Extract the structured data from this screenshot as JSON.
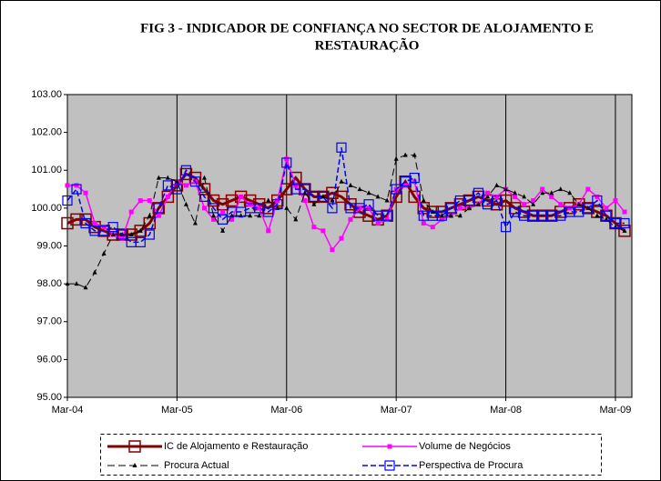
{
  "chart_data": {
    "type": "line",
    "title": [
      "FIG 3 - INDICADOR DE CONFIANÇA NO SECTOR DE ALOJAMENTO E",
      "RESTAURAÇÃO"
    ],
    "categories": [
      "Mar-04",
      null,
      null,
      null,
      null,
      null,
      null,
      null,
      null,
      null,
      null,
      null,
      "Mar-05",
      null,
      null,
      null,
      null,
      null,
      null,
      null,
      null,
      null,
      null,
      null,
      "Mar-06",
      null,
      null,
      null,
      null,
      null,
      null,
      null,
      null,
      null,
      null,
      null,
      "Mar-07",
      null,
      null,
      null,
      null,
      null,
      null,
      null,
      null,
      null,
      null,
      null,
      "Mar-08",
      null,
      null,
      null,
      null,
      null,
      null,
      null,
      null,
      null,
      null,
      null,
      "Mar-09",
      null
    ],
    "ylim": [
      95,
      103
    ],
    "yticks": [
      {
        "value": 95,
        "label": "95.00"
      },
      {
        "value": 96,
        "label": "96.00"
      },
      {
        "value": 97,
        "label": "97.00"
      },
      {
        "value": 98,
        "label": "98.00"
      },
      {
        "value": 99,
        "label": "99.00"
      },
      {
        "value": 100,
        "label": "100.00"
      },
      {
        "value": 101,
        "label": "101.00"
      },
      {
        "value": 102,
        "label": "102.00"
      },
      {
        "value": 103,
        "label": "103.00"
      }
    ],
    "plot_background": "#c0c0c0",
    "year_lines": true,
    "series": [
      {
        "name": "IC de Alojamento e Restauração",
        "color": "#800000",
        "width": 3,
        "dash": "none",
        "marker": "big-square",
        "values": [
          99.6,
          99.7,
          99.7,
          99.5,
          99.4,
          99.3,
          99.3,
          99.3,
          99.4,
          99.6,
          100.0,
          100.3,
          100.6,
          100.9,
          100.8,
          100.5,
          100.2,
          100.1,
          100.2,
          100.3,
          100.2,
          100.1,
          100.0,
          100.2,
          100.5,
          100.8,
          100.5,
          100.3,
          100.3,
          100.4,
          100.3,
          100.1,
          99.9,
          99.8,
          99.7,
          99.8,
          100.3,
          100.7,
          100.3,
          100.0,
          99.9,
          99.9,
          100.0,
          100.1,
          100.2,
          100.3,
          100.2,
          100.1,
          100.2,
          100.0,
          99.9,
          99.8,
          99.8,
          99.8,
          99.9,
          100.0,
          100.1,
          100.0,
          99.9,
          99.8,
          99.6,
          99.4
        ]
      },
      {
        "name": "Volume de Negócios",
        "color": "#ff00ff",
        "width": 1.5,
        "dash": "none",
        "marker": "small-square",
        "values": [
          100.6,
          100.6,
          100.4,
          99.6,
          99.5,
          99.3,
          99.2,
          99.9,
          100.2,
          100.2,
          99.8,
          100.3,
          100.7,
          100.6,
          100.7,
          100.0,
          99.7,
          99.9,
          99.7,
          100.3,
          100.1,
          100.0,
          99.4,
          100.2,
          101.3,
          100.6,
          100.2,
          99.5,
          99.4,
          98.9,
          99.2,
          99.7,
          100.0,
          100.0,
          99.6,
          99.7,
          100.5,
          100.6,
          100.7,
          99.6,
          99.5,
          99.7,
          99.8,
          100.0,
          100.0,
          100.1,
          100.4,
          100.3,
          100.5,
          100.3,
          100.1,
          100.2,
          100.5,
          100.3,
          100.1,
          100.0,
          100.1,
          100.5,
          100.3,
          100.0,
          100.2,
          99.9
        ]
      },
      {
        "name": "Procura Actual",
        "color": "#000000",
        "width": 1,
        "dash": "8,4",
        "marker": "triangle",
        "values": [
          98.0,
          98.0,
          97.9,
          98.3,
          98.8,
          99.3,
          99.3,
          99.3,
          99.4,
          99.8,
          100.8,
          100.8,
          100.7,
          100.1,
          99.6,
          100.8,
          99.8,
          99.4,
          99.8,
          99.8,
          99.8,
          99.8,
          100.2,
          100.0,
          100.0,
          99.7,
          100.4,
          100.1,
          100.3,
          100.2,
          100.7,
          100.6,
          100.5,
          100.4,
          100.3,
          100.2,
          101.3,
          101.4,
          101.4,
          100.2,
          99.9,
          99.8,
          99.8,
          99.8,
          100.0,
          100.1,
          100.3,
          100.6,
          100.5,
          100.4,
          100.3,
          100.1,
          100.4,
          100.4,
          100.5,
          100.4,
          100.1,
          100.0,
          99.8,
          99.7,
          99.5,
          99.4
        ]
      },
      {
        "name": "Perspectiva de Procura",
        "color": "#0000ff",
        "width": 1.5,
        "dash": "6,3",
        "marker": "open-square",
        "values": [
          100.2,
          100.5,
          99.6,
          99.4,
          99.4,
          99.5,
          99.3,
          99.1,
          99.1,
          99.3,
          100.0,
          100.6,
          100.5,
          101.0,
          100.7,
          100.3,
          100.0,
          99.7,
          99.9,
          99.9,
          100.0,
          100.0,
          99.9,
          100.1,
          101.2,
          100.5,
          100.5,
          100.3,
          100.3,
          100.0,
          101.6,
          100.0,
          100.0,
          100.1,
          99.8,
          99.8,
          100.5,
          100.7,
          100.8,
          99.8,
          99.8,
          99.8,
          100.0,
          100.2,
          100.2,
          100.4,
          100.1,
          100.2,
          99.5,
          99.9,
          99.8,
          99.8,
          99.8,
          99.8,
          99.8,
          99.9,
          99.9,
          100.0,
          100.2,
          99.8,
          99.6,
          99.6
        ]
      }
    ]
  }
}
